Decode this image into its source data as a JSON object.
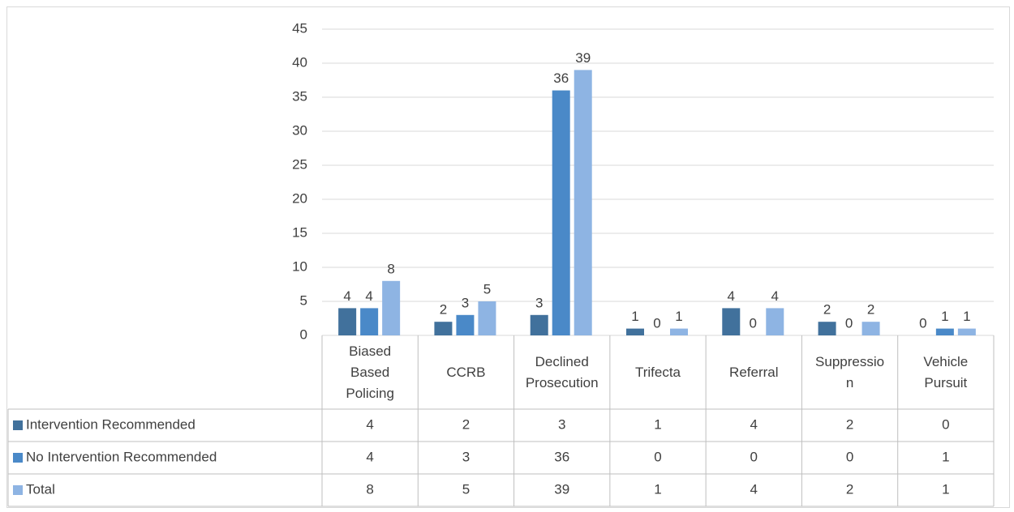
{
  "chart_data": {
    "type": "bar",
    "categories": [
      "Biased Based Policing",
      "CCRB",
      "Declined Prosecution",
      "Trifecta",
      "Referral",
      "Suppression",
      "Vehicle Pursuit"
    ],
    "series": [
      {
        "name": "Intervention Recommended",
        "color": "#41719c",
        "values": [
          4,
          2,
          3,
          1,
          4,
          2,
          0
        ]
      },
      {
        "name": "No Intervention Recommended",
        "color": "#4a89c8",
        "values": [
          4,
          3,
          36,
          0,
          0,
          0,
          1
        ]
      },
      {
        "name": "Total",
        "color": "#8eb4e3",
        "values": [
          8,
          5,
          39,
          1,
          4,
          2,
          1
        ]
      }
    ],
    "ylim": [
      0,
      45
    ],
    "yticks": [
      0,
      5,
      10,
      15,
      20,
      25,
      30,
      35,
      40,
      45
    ],
    "grid": true,
    "data_table": true
  }
}
